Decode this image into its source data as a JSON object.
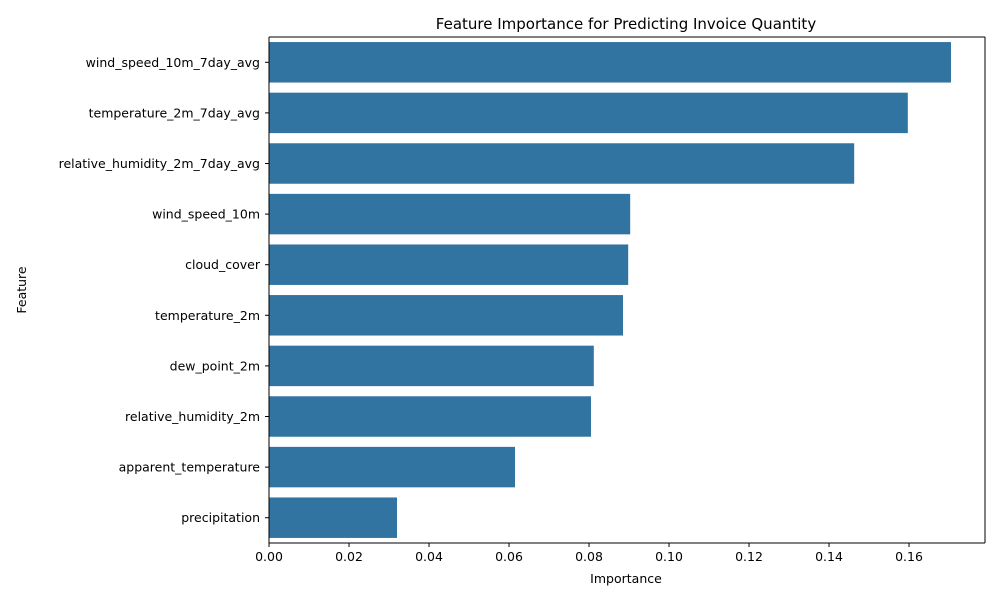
{
  "chart_data": {
    "type": "bar",
    "orientation": "horizontal",
    "title": "Feature Importance for Predicting Invoice Quantity",
    "xlabel": "Importance",
    "ylabel": "Feature",
    "categories": [
      "wind_speed_10m_7day_avg",
      "temperature_2m_7day_avg",
      "relative_humidity_2m_7day_avg",
      "wind_speed_10m",
      "cloud_cover",
      "temperature_2m",
      "dew_point_2m",
      "relative_humidity_2m",
      "apparent_temperature",
      "precipitation"
    ],
    "values": [
      0.1705,
      0.1597,
      0.1463,
      0.0903,
      0.0898,
      0.0885,
      0.0812,
      0.0805,
      0.0615,
      0.032
    ],
    "xlim": [
      0,
      0.179
    ],
    "xticks": [
      0.0,
      0.02,
      0.04,
      0.06,
      0.08,
      0.1,
      0.12,
      0.14,
      0.16
    ],
    "xtick_labels": [
      "0.00",
      "0.02",
      "0.04",
      "0.06",
      "0.08",
      "0.10",
      "0.12",
      "0.14",
      "0.16"
    ],
    "bar_color": "#3274a1",
    "grid": false,
    "legend": "none"
  }
}
